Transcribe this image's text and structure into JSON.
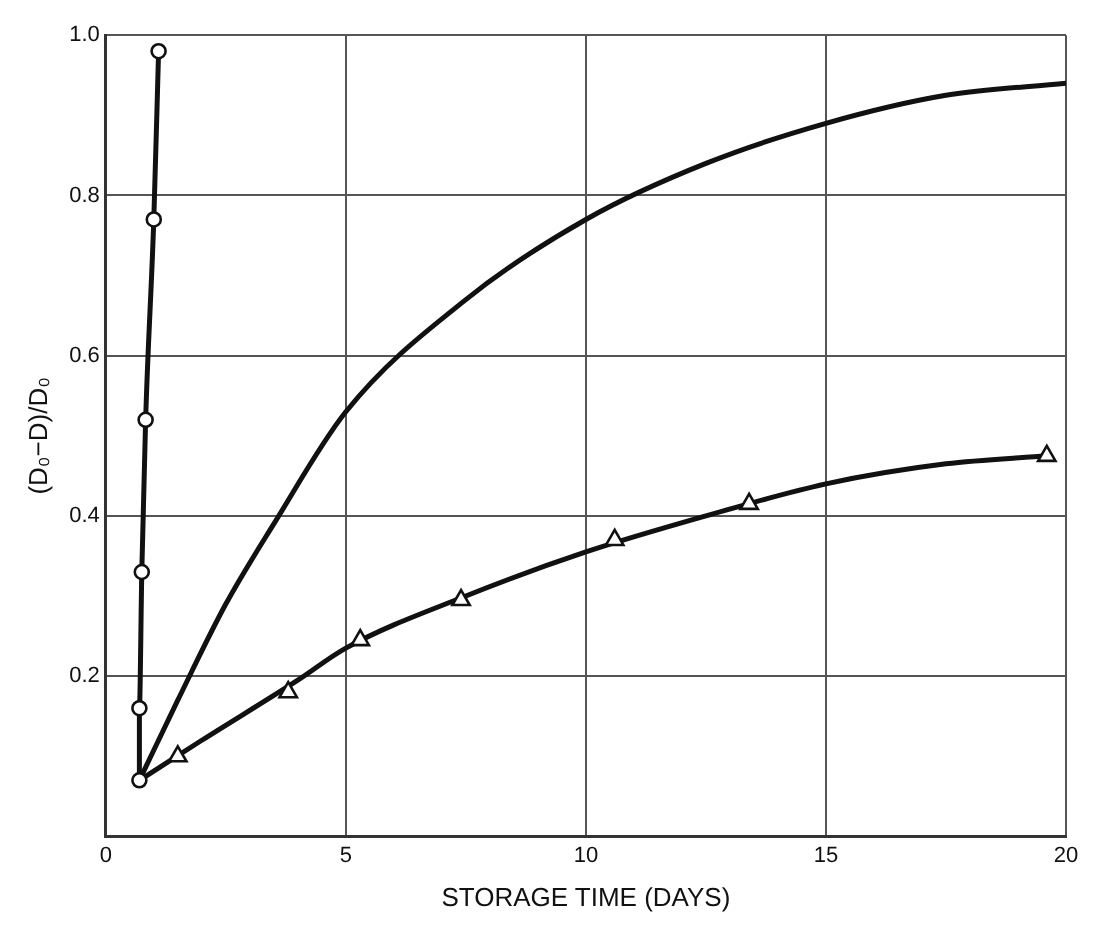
{
  "chart_data": {
    "type": "line",
    "xlabel": "STORAGE TIME (DAYS)",
    "ylabel": "(D₀−D)/D₀",
    "xlim": [
      0,
      20
    ],
    "ylim": [
      0,
      1.0
    ],
    "xticks": [
      0,
      5,
      10,
      15,
      20
    ],
    "yticks": [
      {
        "value": 0,
        "label": null
      },
      0.2,
      0.4,
      0.6,
      0.8,
      {
        "value": 1.0,
        "label": "1.0"
      }
    ],
    "grid": true,
    "legend": false,
    "line_style": "solid",
    "series": [
      {
        "marker": "circle",
        "color": "#111111",
        "x": [
          0.7,
          0.7,
          0.75,
          0.83,
          1.0,
          1.1
        ],
        "values": [
          0.07,
          0.16,
          0.33,
          0.52,
          0.77,
          0.98
        ]
      },
      {
        "marker": "none",
        "color": "#111111",
        "x": [
          0.7,
          1.5,
          2.5,
          3.5,
          5,
          7.5,
          10,
          12.5,
          15,
          17.5,
          20
        ],
        "values": [
          0.07,
          0.17,
          0.29,
          0.39,
          0.53,
          0.67,
          0.77,
          0.84,
          0.89,
          0.925,
          0.94
        ]
      },
      {
        "marker": "none",
        "color": "#111111",
        "x": [
          0.7,
          2,
          4,
          5,
          7.5,
          10,
          12.5,
          15,
          17.5,
          19.6
        ],
        "values": [
          0.07,
          0.12,
          0.195,
          0.235,
          0.3,
          0.355,
          0.4,
          0.44,
          0.465,
          0.475
        ]
      },
      {
        "type": "scatter",
        "marker": "triangle",
        "color": "#111111",
        "x": [
          1.5,
          3.8,
          5.3,
          7.4,
          10.6,
          13.4,
          19.6
        ],
        "values": [
          0.1,
          0.18,
          0.245,
          0.295,
          0.37,
          0.415,
          0.475
        ]
      }
    ]
  }
}
